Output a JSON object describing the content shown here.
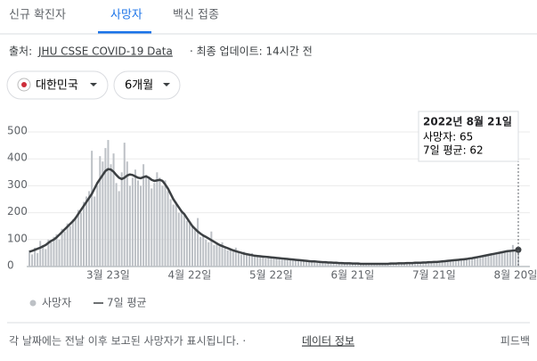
{
  "tabs": [
    "신규 확진자",
    "사망자",
    "백신 접종"
  ],
  "source": {
    "prefix": "출처:",
    "link": "JHU CSSE COVID-19 Data",
    "updated": "· 최종 업데이트: 14시간 전"
  },
  "filters": [
    "대한민국",
    "6개월"
  ],
  "tooltip": {
    "date": "2022년 8월 21일",
    "daily": "사망자: 65",
    "average": "7일 평균: 62"
  },
  "footer": {
    "note": "각 날짜에는 전날 이후 보고된 사망자가 표시됩니다. ·",
    "link": "데이터 정보",
    "feedback": "피드백"
  },
  "chart_data": {
    "type": "bar-line",
    "grid": true,
    "ylim": [
      0,
      500
    ],
    "yticks": [
      0,
      100,
      200,
      300,
      400,
      500
    ],
    "categories": [
      null,
      null,
      null,
      null,
      null,
      null,
      null,
      null,
      null,
      null,
      null,
      null,
      null,
      null,
      null,
      null,
      null,
      null,
      null,
      null,
      null,
      null,
      null,
      null,
      null,
      null,
      null,
      null,
      null,
      "3월 23일",
      null,
      null,
      null,
      null,
      null,
      null,
      null,
      null,
      null,
      null,
      null,
      null,
      null,
      null,
      null,
      null,
      null,
      null,
      null,
      null,
      null,
      null,
      null,
      null,
      null,
      null,
      null,
      null,
      null,
      "4월 22일",
      null,
      null,
      null,
      null,
      null,
      null,
      null,
      null,
      null,
      null,
      null,
      null,
      null,
      null,
      null,
      null,
      null,
      null,
      null,
      null,
      null,
      null,
      null,
      null,
      null,
      null,
      null,
      null,
      null,
      "5월 22일",
      null,
      null,
      null,
      null,
      null,
      null,
      null,
      null,
      null,
      null,
      null,
      null,
      null,
      null,
      null,
      null,
      null,
      null,
      null,
      null,
      null,
      null,
      null,
      null,
      null,
      null,
      null,
      null,
      null,
      "6월 21일",
      null,
      null,
      null,
      null,
      null,
      null,
      null,
      null,
      null,
      null,
      null,
      null,
      null,
      null,
      null,
      null,
      null,
      null,
      null,
      null,
      null,
      null,
      null,
      null,
      null,
      null,
      null,
      null,
      null,
      "7월 21일",
      null,
      null,
      null,
      null,
      null,
      null,
      null,
      null,
      null,
      null,
      null,
      null,
      null,
      null,
      null,
      null,
      null,
      null,
      null,
      null,
      null,
      null,
      null,
      null,
      null,
      null,
      null,
      null,
      null,
      "8월 20일",
      null
    ],
    "series": [
      {
        "name": "사망자",
        "kind": "bar",
        "color": "#bdc1c6",
        "values": [
          60,
          45,
          70,
          50,
          95,
          80,
          65,
          100,
          90,
          110,
          120,
          100,
          140,
          130,
          160,
          150,
          175,
          185,
          210,
          200,
          240,
          260,
          280,
          430,
          260,
          300,
          410,
          390,
          440,
          470,
          380,
          420,
          310,
          280,
          350,
          460,
          390,
          300,
          330,
          360,
          320,
          300,
          380,
          340,
          330,
          290,
          310,
          350,
          330,
          300,
          320,
          280,
          250,
          230,
          240,
          200,
          210,
          190,
          170,
          160,
          150,
          140,
          180,
          110,
          120,
          100,
          90,
          130,
          80,
          85,
          75,
          90,
          70,
          60,
          65,
          55,
          70,
          50,
          45,
          55,
          45,
          40,
          50,
          38,
          42,
          35,
          40,
          30,
          36,
          33,
          30,
          35,
          28,
          32,
          26,
          30,
          25,
          22,
          27,
          24,
          22,
          25,
          18,
          20,
          21,
          17,
          19,
          15,
          17,
          14,
          16,
          13,
          15,
          12,
          14,
          11,
          13,
          10,
          12,
          9,
          11,
          12,
          9,
          10,
          8,
          11,
          10,
          9,
          12,
          8,
          10,
          9,
          11,
          12,
          10,
          13,
          11,
          14,
          12,
          13,
          14,
          12,
          15,
          13,
          16,
          14,
          17,
          15,
          18,
          16,
          19,
          17,
          21,
          20,
          23,
          21,
          25,
          22,
          27,
          24,
          29,
          26,
          32,
          30,
          35,
          33,
          38,
          36,
          42,
          40,
          46,
          44,
          50,
          48,
          55,
          52,
          58,
          56,
          80,
          62,
          65
        ]
      },
      {
        "name": "7일 평균",
        "kind": "line",
        "color": "#3c4043",
        "values": [
          55,
          58,
          62,
          66,
          70,
          75,
          80,
          88,
          95,
          100,
          108,
          118,
          128,
          138,
          148,
          158,
          168,
          180,
          195,
          210,
          225,
          240,
          255,
          270,
          290,
          310,
          325,
          340,
          355,
          362,
          360,
          352,
          340,
          330,
          325,
          330,
          338,
          342,
          340,
          335,
          330,
          328,
          332,
          335,
          330,
          322,
          318,
          320,
          322,
          318,
          305,
          290,
          270,
          250,
          235,
          220,
          205,
          195,
          180,
          165,
          150,
          140,
          130,
          122,
          115,
          110,
          104,
          98,
          92,
          86,
          80,
          76,
          72,
          68,
          64,
          60,
          57,
          54,
          51,
          48,
          46,
          44,
          42,
          40,
          39,
          38,
          37,
          36,
          35,
          34,
          33,
          32,
          31,
          30,
          29,
          28,
          27,
          26,
          25,
          24,
          23,
          22,
          21,
          20,
          19,
          19,
          18,
          17,
          16,
          16,
          15,
          15,
          14,
          14,
          13,
          13,
          12,
          12,
          12,
          11,
          11,
          11,
          10,
          10,
          10,
          10,
          10,
          10,
          10,
          10,
          10,
          10,
          10,
          11,
          11,
          11,
          12,
          12,
          12,
          13,
          13,
          13,
          14,
          14,
          14,
          15,
          15,
          16,
          16,
          17,
          17,
          18,
          19,
          20,
          21,
          22,
          23,
          24,
          25,
          26,
          27,
          28,
          30,
          31,
          33,
          35,
          37,
          39,
          41,
          43,
          45,
          47,
          49,
          51,
          53,
          55,
          57,
          58,
          59,
          60,
          62
        ]
      }
    ]
  }
}
